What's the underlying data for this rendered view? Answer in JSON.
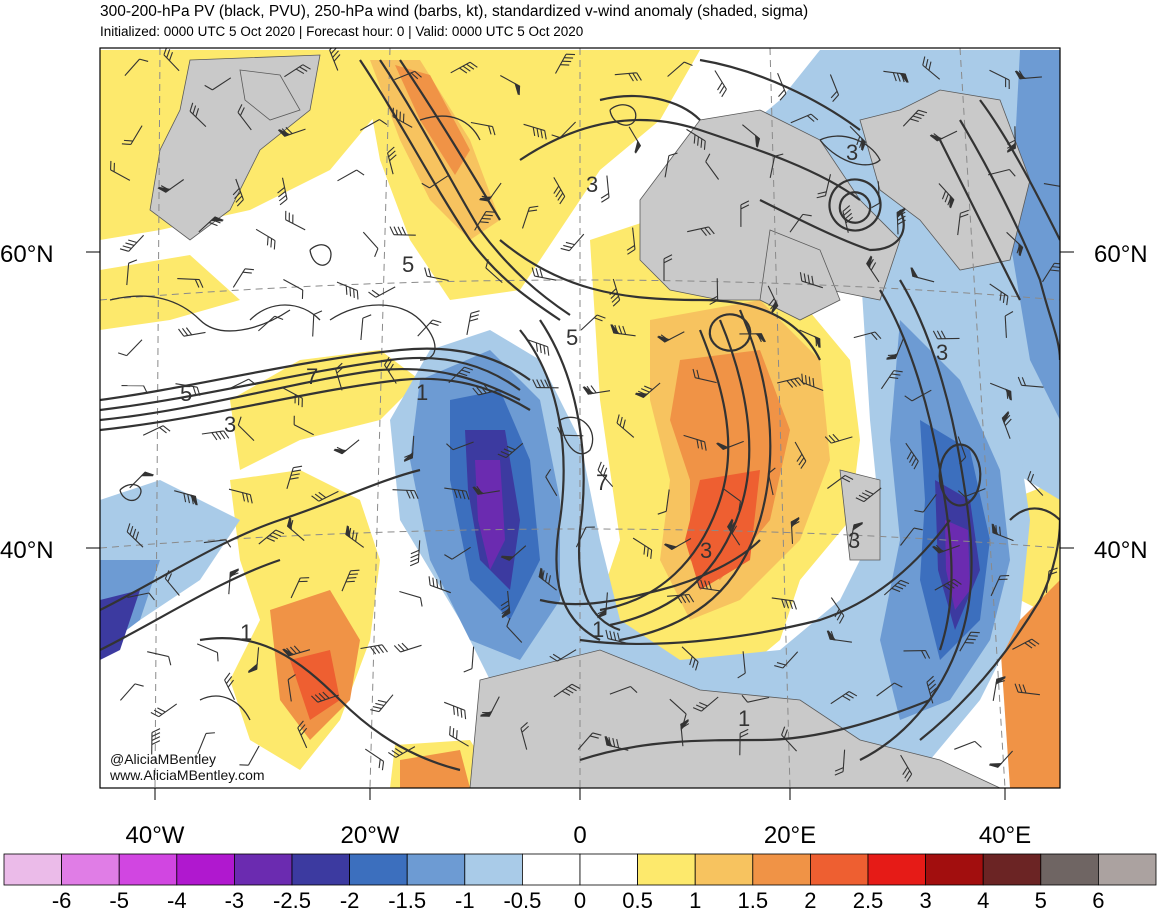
{
  "header": {
    "title": "300-200-hPa PV (black, PVU), 250-hPa wind (barbs, kt), standardized v-wind anomaly (shaded, sigma)",
    "subtitle": "Initialized: 0000 UTC 5 Oct 2020 | Forecast hour: 0 | Valid: 0000 UTC 5 Oct 2020"
  },
  "map": {
    "lat_labels": [
      {
        "text": "60°N",
        "lat": 60
      },
      {
        "text": "40°N",
        "lat": 40
      }
    ],
    "lon_labels": [
      {
        "text": "40°W",
        "lon": -40
      },
      {
        "text": "20°W",
        "lon": -20
      },
      {
        "text": "0",
        "lon": 0
      },
      {
        "text": "20°E",
        "lon": 20
      },
      {
        "text": "40°E",
        "lon": 40
      }
    ],
    "contour_labels": [
      "3",
      "3",
      "5",
      "5",
      "5",
      "7",
      "3",
      "1",
      "7",
      "3",
      "1",
      "3",
      "1",
      "1",
      "3"
    ],
    "credit_handle": "@AliciaMBentley",
    "credit_site": "www.AliciaMBentley.com"
  },
  "colorbar": {
    "labels": [
      "-6",
      "-5",
      "-4",
      "-3",
      "-2.5",
      "-2",
      "-1.5",
      "-1",
      "-0.5",
      "0",
      "0.5",
      "1",
      "1.5",
      "2",
      "2.5",
      "3",
      "4",
      "5",
      "6"
    ],
    "colors": [
      "#ebbbe9",
      "#e07de6",
      "#d146e1",
      "#b018cf",
      "#6b2bb0",
      "#3c3aa0",
      "#3c6fbe",
      "#6d9bd3",
      "#a9cbe8",
      "#ffffff",
      "#ffffff",
      "#fde96c",
      "#f7c35f",
      "#f09346",
      "#ee5f31",
      "#e61b17",
      "#a20e0e",
      "#6b2424",
      "#6f6563",
      "#aba2a0"
    ]
  }
}
